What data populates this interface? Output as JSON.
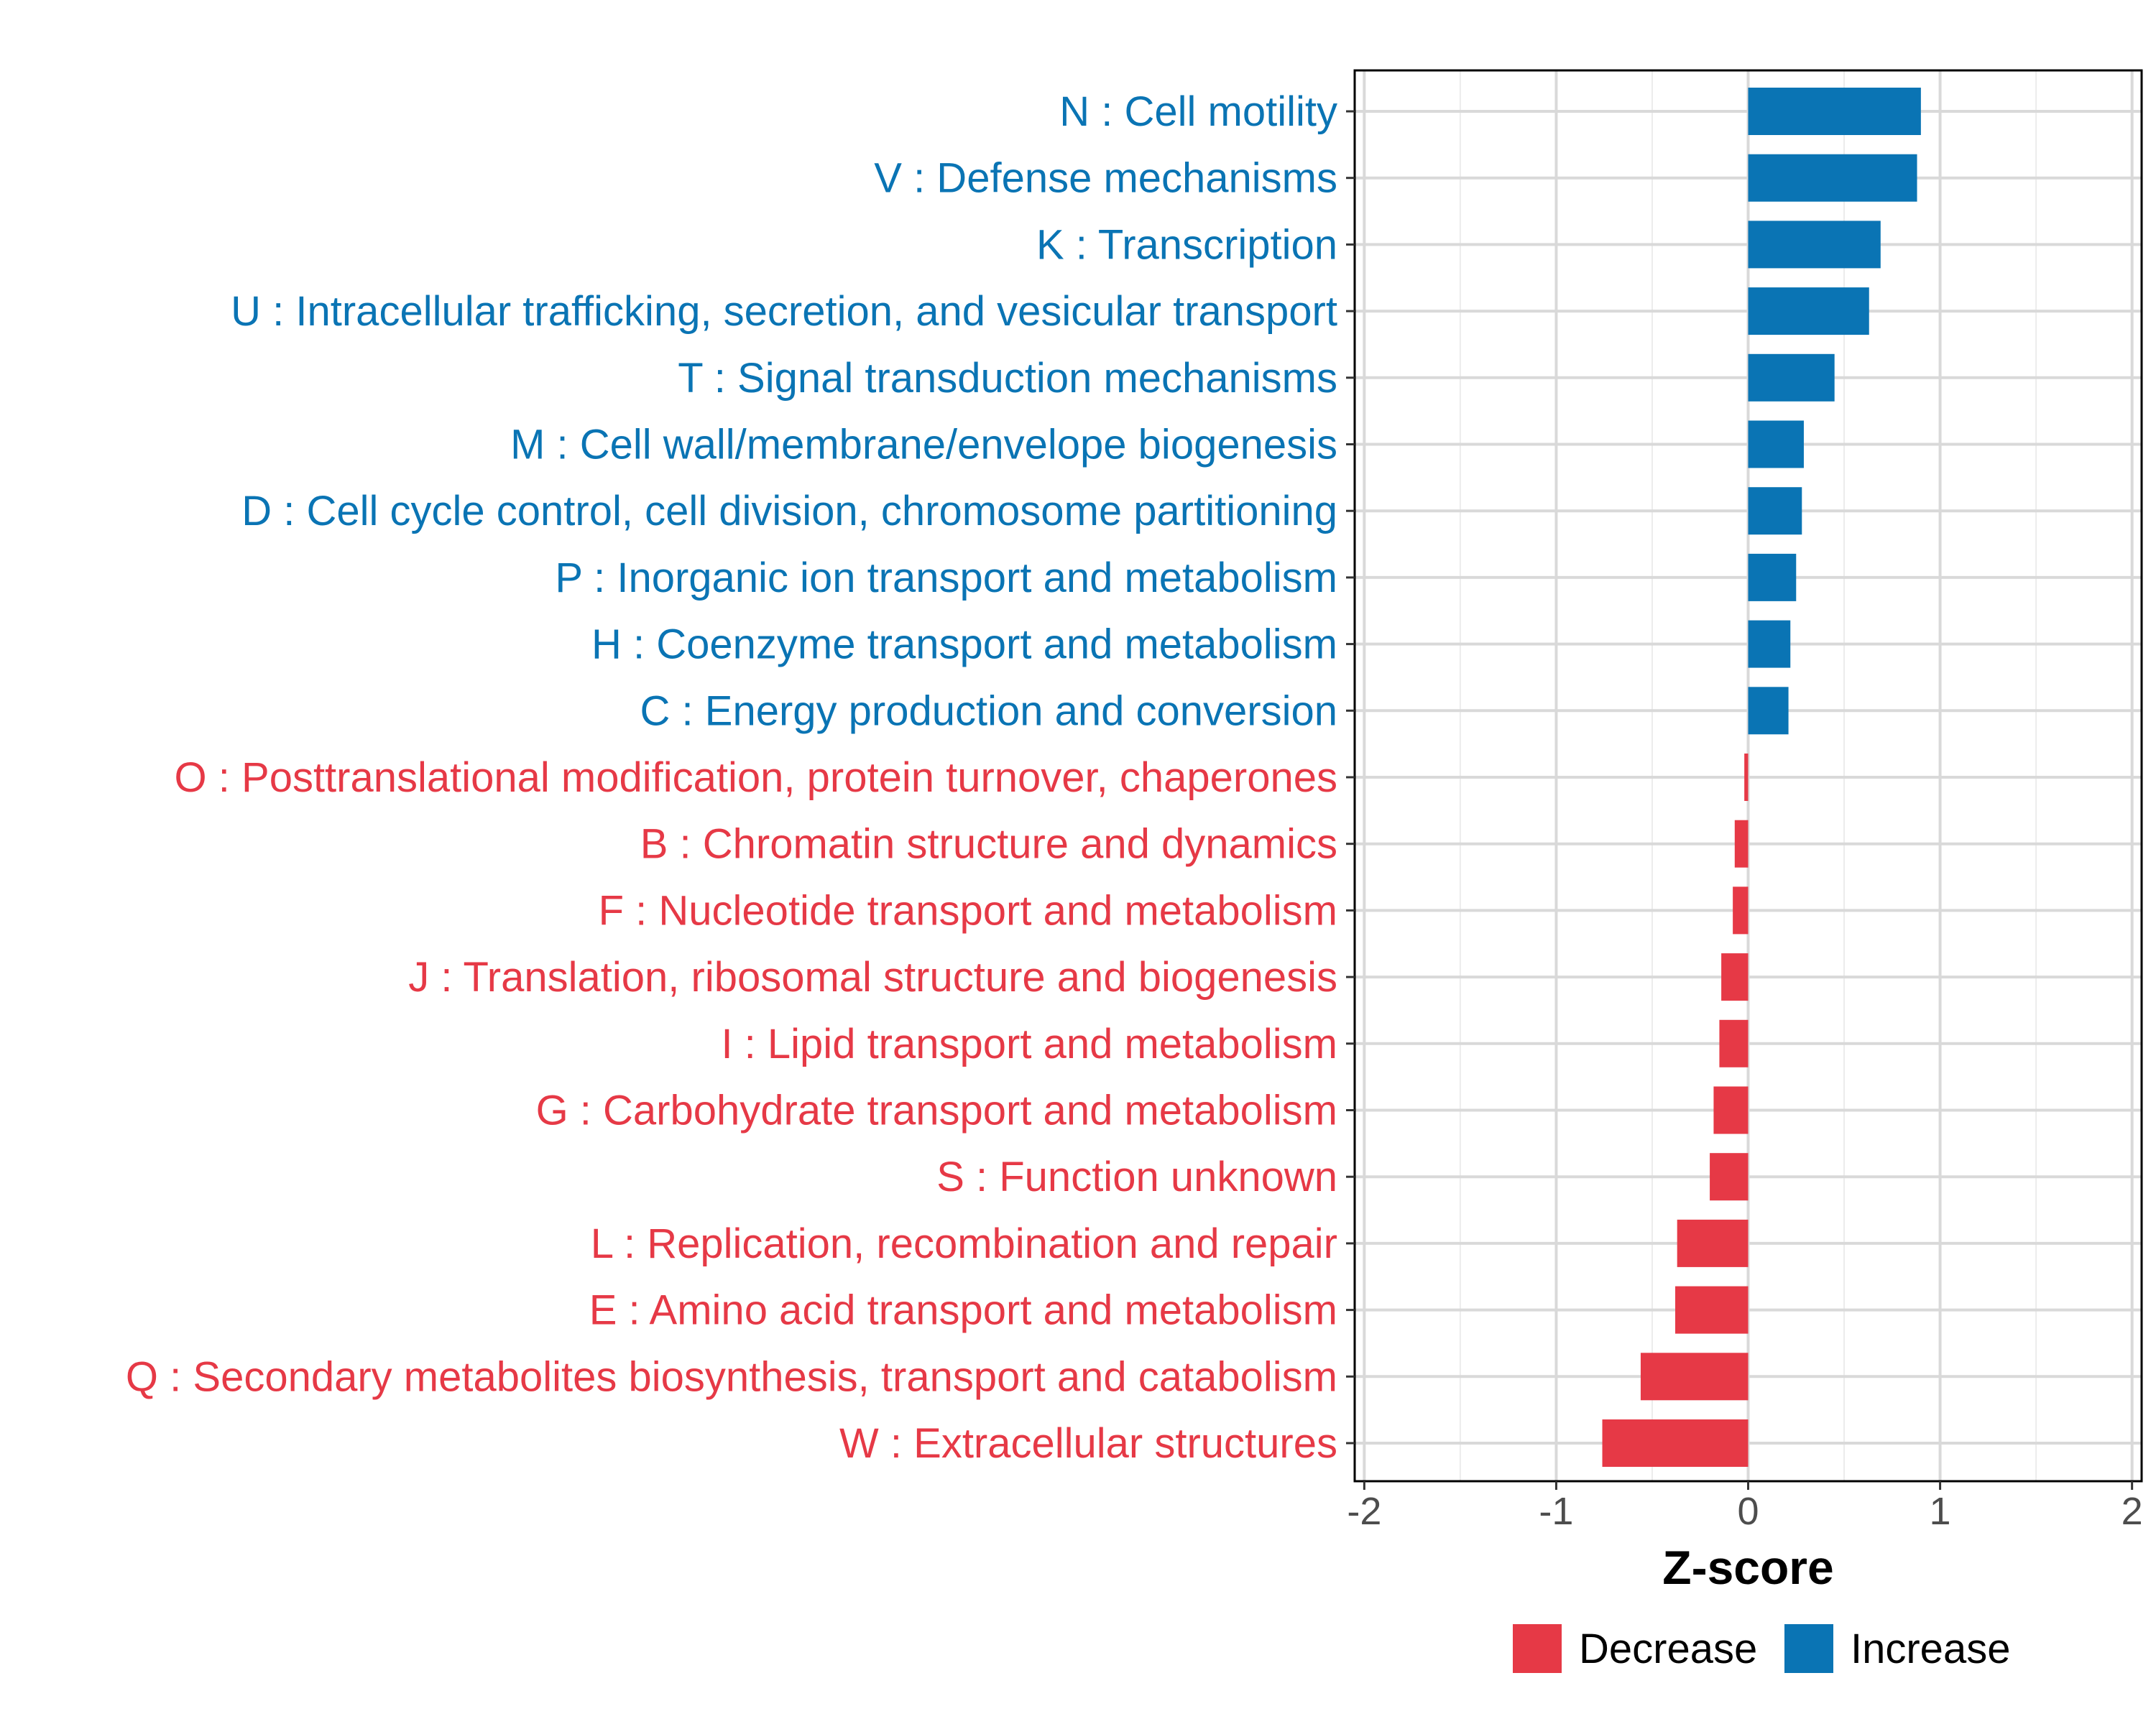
{
  "chart_data": {
    "type": "bar",
    "orientation": "horizontal",
    "title": "",
    "xlabel": "Z-score",
    "ylabel": "",
    "xlim": [
      -2.05,
      2.05
    ],
    "x_ticks": [
      -2,
      -1,
      0,
      1,
      2
    ],
    "x_tick_labels": [
      "-2",
      "-1",
      "0",
      "1",
      "2"
    ],
    "grid": true,
    "legend_position": "bottom",
    "colors": {
      "Decrease": "#e63946",
      "Increase": "#0a74b4"
    },
    "categories": [
      {
        "label": "N : Cell motility",
        "value": 0.9,
        "group": "Increase"
      },
      {
        "label": "V : Defense mechanisms",
        "value": 0.88,
        "group": "Increase"
      },
      {
        "label": "K : Transcription",
        "value": 0.69,
        "group": "Increase"
      },
      {
        "label": "U : Intracellular trafficking, secretion, and vesicular transport",
        "value": 0.63,
        "group": "Increase"
      },
      {
        "label": "T : Signal transduction mechanisms",
        "value": 0.45,
        "group": "Increase"
      },
      {
        "label": "M : Cell wall/membrane/envelope biogenesis",
        "value": 0.29,
        "group": "Increase"
      },
      {
        "label": "D : Cell cycle control, cell division, chromosome partitioning",
        "value": 0.28,
        "group": "Increase"
      },
      {
        "label": "P : Inorganic ion transport and metabolism",
        "value": 0.25,
        "group": "Increase"
      },
      {
        "label": "H : Coenzyme transport and metabolism",
        "value": 0.22,
        "group": "Increase"
      },
      {
        "label": "C : Energy production and conversion",
        "value": 0.21,
        "group": "Increase"
      },
      {
        "label": "O : Posttranslational modification, protein turnover, chaperones",
        "value": -0.02,
        "group": "Decrease"
      },
      {
        "label": "B : Chromatin structure and dynamics",
        "value": -0.07,
        "group": "Decrease"
      },
      {
        "label": "F : Nucleotide transport and metabolism",
        "value": -0.08,
        "group": "Decrease"
      },
      {
        "label": "J : Translation, ribosomal structure and biogenesis",
        "value": -0.14,
        "group": "Decrease"
      },
      {
        "label": "I : Lipid transport and metabolism",
        "value": -0.15,
        "group": "Decrease"
      },
      {
        "label": "G : Carbohydrate transport and metabolism",
        "value": -0.18,
        "group": "Decrease"
      },
      {
        "label": "S : Function unknown",
        "value": -0.2,
        "group": "Decrease"
      },
      {
        "label": "L : Replication, recombination and repair",
        "value": -0.37,
        "group": "Decrease"
      },
      {
        "label": "E : Amino acid transport and metabolism",
        "value": -0.38,
        "group": "Decrease"
      },
      {
        "label": "Q : Secondary metabolites biosynthesis, transport and catabolism",
        "value": -0.56,
        "group": "Decrease"
      },
      {
        "label": "W : Extracellular structures",
        "value": -0.76,
        "group": "Decrease"
      }
    ],
    "legend": [
      {
        "label": "Decrease",
        "group": "Decrease"
      },
      {
        "label": "Increase",
        "group": "Increase"
      }
    ]
  }
}
